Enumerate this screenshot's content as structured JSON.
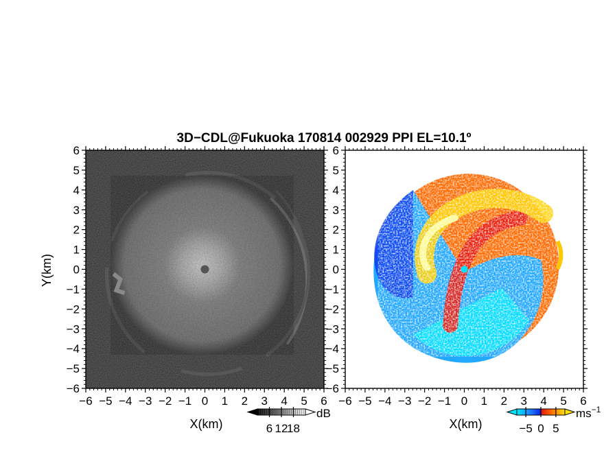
{
  "title": "3D−CDL@Fukuoka 170814 002929 PPI EL=10.1º",
  "ylabel": "Y(km)",
  "chart_data": [
    {
      "type": "heatmap",
      "panel": "reflectivity",
      "xlabel": "X(km)",
      "ylabel": "Y(km)",
      "xlim": [
        -6,
        6
      ],
      "ylim": [
        -6,
        6
      ],
      "x_ticks": [
        "−6",
        "−5",
        "−4",
        "−3",
        "−2",
        "−1",
        "0",
        "1",
        "2",
        "3",
        "4",
        "5",
        "6"
      ],
      "y_ticks": [
        "6",
        "5",
        "4",
        "3",
        "2",
        "1",
        "0",
        "−1",
        "−2",
        "−3",
        "−4",
        "−5",
        "−6"
      ],
      "colorscale": "grayscale",
      "colorbar": {
        "unit": "dB",
        "ticks": [
          "6",
          "12",
          "18"
        ],
        "range": [
          0,
          24
        ]
      },
      "echo_radius_km": 4.6,
      "center_marker": [
        0,
        0
      ]
    },
    {
      "type": "heatmap",
      "panel": "doppler_velocity",
      "xlabel": "X(km)",
      "xlim": [
        -6,
        6
      ],
      "ylim": [
        -6,
        6
      ],
      "x_ticks": [
        "−6",
        "−5",
        "−4",
        "−3",
        "−2",
        "−1",
        "0",
        "1",
        "2",
        "3",
        "4",
        "5",
        "6"
      ],
      "y_ticks": [
        "6",
        "5",
        "4",
        "3",
        "2",
        "1",
        "0",
        "−1",
        "−2",
        "−3",
        "−4",
        "−5",
        "−6"
      ],
      "colorscale": "cyan-blue-red-orange-yellow",
      "colorbar": {
        "unit": "ms",
        "unit_exponent": "−1",
        "ticks": [
          "−5",
          "0",
          "5"
        ],
        "range": [
          -8,
          8
        ]
      },
      "echo_radius_km": 4.7,
      "center_marker": [
        0,
        0
      ]
    }
  ]
}
